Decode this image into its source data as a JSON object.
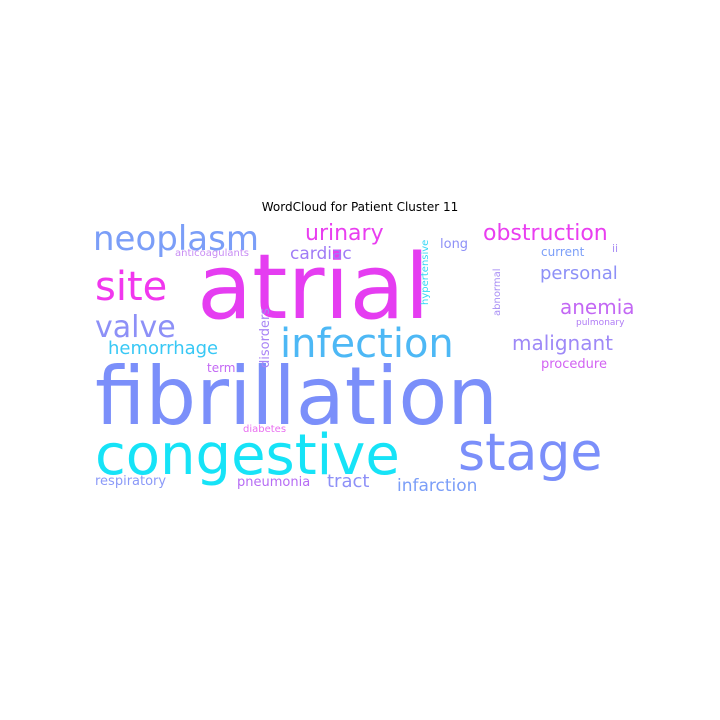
{
  "chart_data": {
    "type": "wordcloud",
    "title": "WordCloud for Patient Cluster 11",
    "words": [
      {
        "text": "atrial",
        "weight": 100,
        "color": "#e53df1"
      },
      {
        "text": "fibrillation",
        "weight": 78,
        "color": "#7b8ffa"
      },
      {
        "text": "congestive",
        "weight": 62,
        "color": "#16e3f7"
      },
      {
        "text": "stage",
        "weight": 55,
        "color": "#7b8ffa"
      },
      {
        "text": "infection",
        "weight": 46,
        "color": "#4db8f5"
      },
      {
        "text": "site",
        "weight": 40,
        "color": "#f137ee"
      },
      {
        "text": "neoplasm",
        "weight": 36,
        "color": "#7b9ef8"
      },
      {
        "text": "valve",
        "weight": 33,
        "color": "#8d90f7"
      },
      {
        "text": "obstruction",
        "weight": 26,
        "color": "#e93ef0"
      },
      {
        "text": "urinary",
        "weight": 24,
        "color": "#e93ef0"
      },
      {
        "text": "malignant",
        "weight": 22,
        "color": "#9e89f7"
      },
      {
        "text": "anemia",
        "weight": 22,
        "color": "#c368f4"
      },
      {
        "text": "hemorrhage",
        "weight": 21,
        "color": "#38c8f5"
      },
      {
        "text": "personal",
        "weight": 20,
        "color": "#8d90f7"
      },
      {
        "text": "cardiac",
        "weight": 20,
        "color": "#a07cf6"
      },
      {
        "text": "tract",
        "weight": 20,
        "color": "#8d90f7"
      },
      {
        "text": "infarction",
        "weight": 19,
        "color": "#7b9ef8"
      },
      {
        "text": "respiratory",
        "weight": 15,
        "color": "#8b9af8"
      },
      {
        "text": "pneumonia",
        "weight": 15,
        "color": "#b66cf4"
      },
      {
        "text": "disorders",
        "weight": 15,
        "color": "#a985f5"
      },
      {
        "text": "long",
        "weight": 15,
        "color": "#8d90f7"
      },
      {
        "text": "procedure",
        "weight": 14,
        "color": "#d263f2"
      },
      {
        "text": "term",
        "weight": 13,
        "color": "#c368f4"
      },
      {
        "text": "current",
        "weight": 13,
        "color": "#7b9ef8"
      },
      {
        "text": "anticoagulants",
        "weight": 11,
        "color": "#c88cf4"
      },
      {
        "text": "hypertensive",
        "weight": 11,
        "color": "#38d8f5"
      },
      {
        "text": "abnormal",
        "weight": 11,
        "color": "#a98ff5"
      },
      {
        "text": "pulmonary",
        "weight": 11,
        "color": "#b07cf5"
      },
      {
        "text": "ii",
        "weight": 11,
        "color": "#a98ff5"
      },
      {
        "text": "diabetes",
        "weight": 10,
        "color": "#e96ef0"
      }
    ]
  }
}
